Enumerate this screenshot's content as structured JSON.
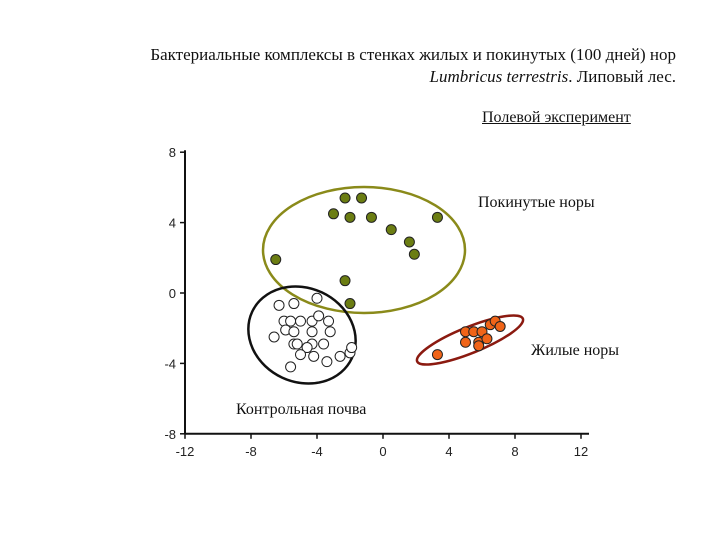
{
  "title_line1": "Бактериальные комплексы в стенках жилых и покинутых (100 дней) нор",
  "title_line2_italic": "Lumbricus terrestris",
  "title_line2_rest": ". Липовый лес.",
  "subtitle": "Полевой эксперимент",
  "chart_data": {
    "type": "scatter",
    "xlim": [
      -12,
      12
    ],
    "ylim": [
      -8,
      8
    ],
    "x_ticks": [
      "-12",
      "-8",
      "-4",
      "0",
      "4",
      "8",
      "12"
    ],
    "y_ticks": [
      "8",
      "4",
      "0",
      "-4",
      "-8"
    ],
    "grid": false,
    "series": [
      {
        "name": "Покинутые норы",
        "color": "#6b7d12",
        "ellipse_color": "#8a8a1a",
        "points": [
          [
            -2.3,
            5.4
          ],
          [
            -1.3,
            5.4
          ],
          [
            -3.0,
            4.5
          ],
          [
            -2.0,
            4.3
          ],
          [
            -0.7,
            4.3
          ],
          [
            0.5,
            3.6
          ],
          [
            1.6,
            2.9
          ],
          [
            1.9,
            2.2
          ],
          [
            3.3,
            4.3
          ],
          [
            -6.5,
            1.9
          ],
          [
            -2.3,
            0.7
          ],
          [
            -2.0,
            -0.6
          ]
        ]
      },
      {
        "name": "Жилые норы",
        "color": "#f06418",
        "ellipse_color": "#8b1a10",
        "points": [
          [
            3.3,
            -3.5
          ],
          [
            5.0,
            -2.2
          ],
          [
            5.0,
            -2.8
          ],
          [
            5.5,
            -2.2
          ],
          [
            5.8,
            -2.8
          ],
          [
            6.0,
            -2.2
          ],
          [
            6.3,
            -2.6
          ],
          [
            6.5,
            -1.8
          ],
          [
            6.8,
            -1.6
          ],
          [
            7.1,
            -1.9
          ],
          [
            5.8,
            -3.0
          ]
        ]
      },
      {
        "name": "Контрольная почва",
        "color": "#ffffff",
        "ellipse_color": "#111111",
        "points": [
          [
            -6.3,
            -0.7
          ],
          [
            -5.4,
            -0.6
          ],
          [
            -4.0,
            -0.3
          ],
          [
            -6.0,
            -1.6
          ],
          [
            -5.6,
            -1.6
          ],
          [
            -5.0,
            -1.6
          ],
          [
            -4.3,
            -1.6
          ],
          [
            -3.3,
            -1.6
          ],
          [
            -3.9,
            -1.3
          ],
          [
            -6.6,
            -2.5
          ],
          [
            -5.9,
            -2.1
          ],
          [
            -5.4,
            -2.2
          ],
          [
            -4.3,
            -2.2
          ],
          [
            -3.2,
            -2.2
          ],
          [
            -5.4,
            -2.9
          ],
          [
            -5.2,
            -2.9
          ],
          [
            -4.3,
            -2.9
          ],
          [
            -3.6,
            -2.9
          ],
          [
            -4.6,
            -3.1
          ],
          [
            -5.0,
            -3.5
          ],
          [
            -4.2,
            -3.6
          ],
          [
            -3.4,
            -3.9
          ],
          [
            -2.6,
            -3.6
          ],
          [
            -2.0,
            -3.4
          ],
          [
            -1.9,
            -3.1
          ],
          [
            -5.6,
            -4.2
          ]
        ]
      }
    ],
    "annotations": [
      {
        "text": "Покинутые норы"
      },
      {
        "text": "Жилые норы"
      },
      {
        "text": "Контрольная почва"
      }
    ]
  }
}
